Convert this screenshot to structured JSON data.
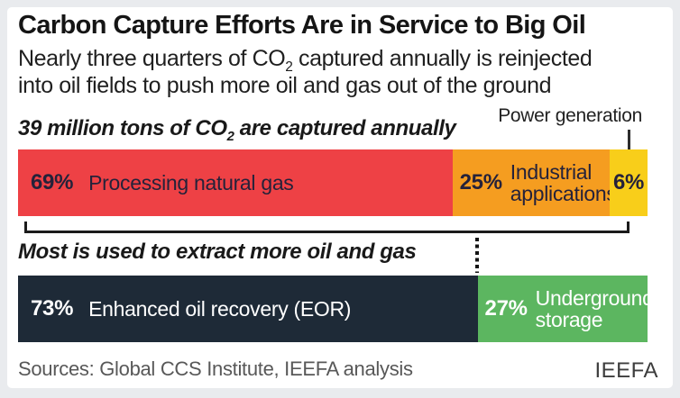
{
  "header": {
    "title": "Carbon Capture Efforts Are in Service to Big Oil",
    "subtitle_line1_pre": "Nearly three quarters of CO",
    "subtitle_line1_sub": "2",
    "subtitle_line1_post": " captured annually is reinjected",
    "subtitle_line2": "into oil fields to push more oil and gas out of the ground"
  },
  "annotations": {
    "bar1_caption_pre": "39 million tons of CO",
    "bar1_caption_sub": "2",
    "bar1_caption_post": " are captured annually",
    "bar2_caption": "Most is used to extract more oil and gas"
  },
  "chart_data": [
    {
      "type": "bar",
      "orientation": "horizontal",
      "stacked": true,
      "title": "39 million tons of CO₂ are captured annually",
      "unit": "%",
      "segments": [
        {
          "label": "Processing natural gas",
          "pct_label": "69%",
          "value": 69,
          "color": "#ee4145",
          "text_color": "#25223a"
        },
        {
          "label": "Industrial applications",
          "pct_label": "25%",
          "value": 25,
          "color": "#f59d20",
          "text_color": "#25223a"
        },
        {
          "label": "Power generation",
          "pct_label": "6%",
          "value": 6,
          "color": "#f8ce1a",
          "text_color": "#25223a"
        }
      ]
    },
    {
      "type": "bar",
      "orientation": "horizontal",
      "stacked": true,
      "title": "Most is used to extract more oil and gas",
      "unit": "%",
      "segments": [
        {
          "label": "Enhanced oil recovery (EOR)",
          "pct_label": "73%",
          "value": 73,
          "color": "#1e2a37",
          "text_color": "#ffffff"
        },
        {
          "label": "Underground storage",
          "pct_label": "27%",
          "value": 27,
          "color": "#5cb660",
          "text_color": "#ffffff"
        }
      ]
    }
  ],
  "footer": {
    "sources": "Sources: Global CCS Institute, IEEFA analysis",
    "logo": "IEEFA"
  }
}
